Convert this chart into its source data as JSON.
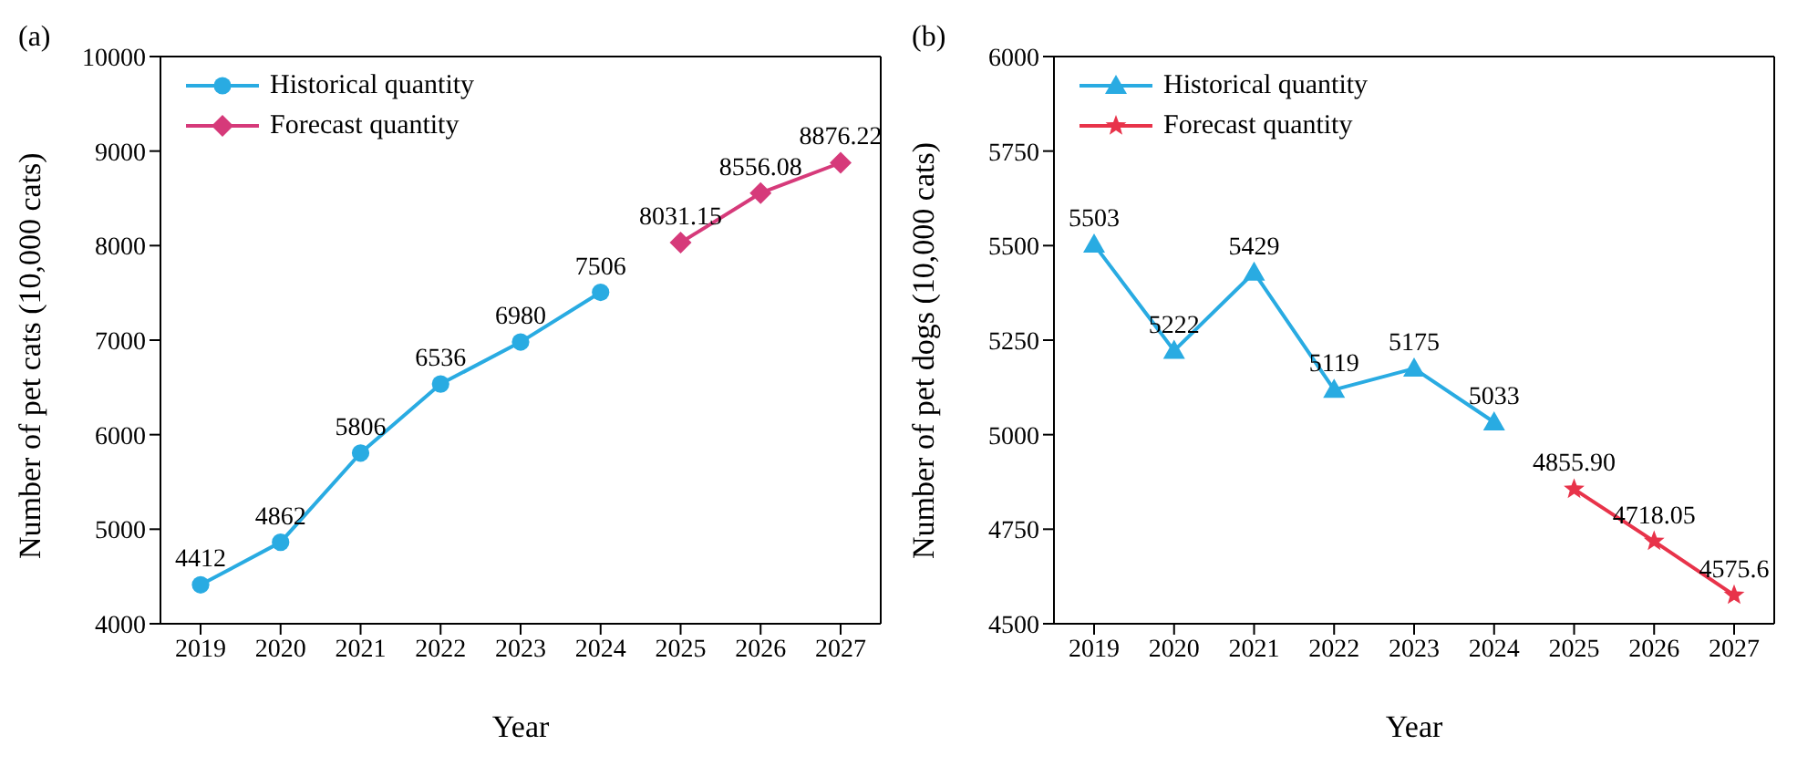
{
  "chart_data": [
    {
      "type": "line",
      "title": "(a)",
      "xlabel": "Year",
      "ylabel": "Number of pet cats (10,000 cats)",
      "categories": [
        "2019",
        "2020",
        "2021",
        "2022",
        "2023",
        "2024",
        "2025",
        "2026",
        "2027"
      ],
      "ylim": [
        4000,
        10000
      ],
      "yticks": [
        4000,
        5000,
        6000,
        7000,
        8000,
        9000,
        10000
      ],
      "legend": "top left",
      "series": [
        {
          "name": "Historical quantity",
          "color": "#29abe2",
          "marker": "circle",
          "values": [
            4412,
            4862,
            5806,
            6536,
            6980,
            7506,
            null,
            null,
            null
          ],
          "value_labels": [
            "4412",
            "4862",
            "5806",
            "6536",
            "6980",
            "7506",
            null,
            null,
            null
          ]
        },
        {
          "name": "Forecast quantity",
          "color": "#d63a7a",
          "marker": "diamond",
          "values": [
            null,
            null,
            null,
            null,
            null,
            null,
            8031.15,
            8556.08,
            8876.22
          ],
          "value_labels": [
            null,
            null,
            null,
            null,
            null,
            null,
            "8031.15",
            "8556.08",
            "8876.22"
          ]
        }
      ]
    },
    {
      "type": "line",
      "title": "(b)",
      "xlabel": "Year",
      "ylabel": "Number of pet dogs (10,000 cats)",
      "categories": [
        "2019",
        "2020",
        "2021",
        "2022",
        "2023",
        "2024",
        "2025",
        "2026",
        "2027"
      ],
      "ylim": [
        4500,
        6000
      ],
      "yticks": [
        4500,
        4750,
        5000,
        5250,
        5500,
        5750,
        6000
      ],
      "legend": "top left",
      "series": [
        {
          "name": "Historical quantity",
          "color": "#29abe2",
          "marker": "triangle",
          "values": [
            5503,
            5222,
            5429,
            5119,
            5175,
            5033,
            null,
            null,
            null
          ],
          "value_labels": [
            "5503",
            "5222",
            "5429",
            "5119",
            "5175",
            "5033",
            null,
            null,
            null
          ]
        },
        {
          "name": "Forecast quantity",
          "color": "#e8334a",
          "marker": "star",
          "values": [
            null,
            null,
            null,
            null,
            null,
            null,
            4855.9,
            4718.05,
            4575.6
          ],
          "value_labels": [
            null,
            null,
            null,
            null,
            null,
            null,
            "4855.90",
            "4718.05",
            "4575.6"
          ]
        }
      ]
    }
  ]
}
